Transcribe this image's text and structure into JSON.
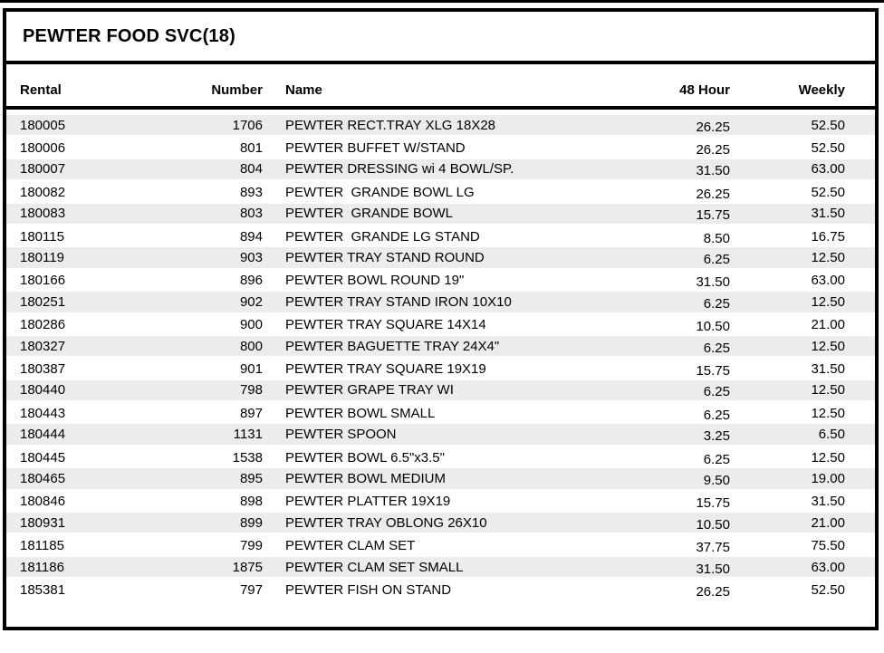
{
  "title": "PEWTER FOOD SVC(18)",
  "columns": {
    "rental": "Rental",
    "number": "Number",
    "name": "Name",
    "h48": "48 Hour",
    "weekly": "Weekly"
  },
  "colors": {
    "border": "#000000",
    "row_alt": "#ececec",
    "text": "#000000"
  },
  "rows": [
    {
      "rental": "180005",
      "number": "1706",
      "name": "PEWTER RECT.TRAY XLG 18X28",
      "h48": "26.25",
      "weekly": "52.50"
    },
    {
      "rental": "180006",
      "number": "801",
      "name": "PEWTER BUFFET W/STAND",
      "h48": "26.25",
      "weekly": "52.50"
    },
    {
      "rental": "180007",
      "number": "804",
      "name": "PEWTER DRESSING wi 4 BOWL/SP.",
      "h48": "31.50",
      "weekly": "63.00"
    },
    {
      "rental": "180082",
      "number": "893",
      "name": "PEWTER  GRANDE BOWL LG",
      "h48": "26.25",
      "weekly": "52.50"
    },
    {
      "rental": "180083",
      "number": "803",
      "name": "PEWTER  GRANDE BOWL",
      "h48": "15.75",
      "weekly": "31.50"
    },
    {
      "rental": "180115",
      "number": "894",
      "name": "PEWTER  GRANDE LG STAND",
      "h48": "8.50",
      "weekly": "16.75"
    },
    {
      "rental": "180119",
      "number": "903",
      "name": "PEWTER TRAY STAND ROUND",
      "h48": "6.25",
      "weekly": "12.50"
    },
    {
      "rental": "180166",
      "number": "896",
      "name": "PEWTER BOWL ROUND 19\"",
      "h48": "31.50",
      "weekly": "63.00"
    },
    {
      "rental": "180251",
      "number": "902",
      "name": "PEWTER TRAY STAND IRON 10X10",
      "h48": "6.25",
      "weekly": "12.50"
    },
    {
      "rental": "180286",
      "number": "900",
      "name": "PEWTER TRAY SQUARE 14X14",
      "h48": "10.50",
      "weekly": "21.00"
    },
    {
      "rental": "180327",
      "number": "800",
      "name": "PEWTER BAGUETTE TRAY 24X4\"",
      "h48": "6.25",
      "weekly": "12.50"
    },
    {
      "rental": "180387",
      "number": "901",
      "name": "PEWTER TRAY SQUARE 19X19",
      "h48": "15.75",
      "weekly": "31.50"
    },
    {
      "rental": "180440",
      "number": "798",
      "name": "PEWTER GRAPE TRAY WI",
      "h48": "6.25",
      "weekly": "12.50"
    },
    {
      "rental": "180443",
      "number": "897",
      "name": "PEWTER BOWL SMALL",
      "h48": "6.25",
      "weekly": "12.50"
    },
    {
      "rental": "180444",
      "number": "1131",
      "name": "PEWTER SPOON",
      "h48": "3.25",
      "weekly": "6.50"
    },
    {
      "rental": "180445",
      "number": "1538",
      "name": "PEWTER BOWL 6.5\"x3.5\"",
      "h48": "6.25",
      "weekly": "12.50"
    },
    {
      "rental": "180465",
      "number": "895",
      "name": "PEWTER BOWL MEDIUM",
      "h48": "9.50",
      "weekly": "19.00"
    },
    {
      "rental": "180846",
      "number": "898",
      "name": "PEWTER PLATTER 19X19",
      "h48": "15.75",
      "weekly": "31.50"
    },
    {
      "rental": "180931",
      "number": "899",
      "name": "PEWTER TRAY OBLONG 26X10",
      "h48": "10.50",
      "weekly": "21.00"
    },
    {
      "rental": "181185",
      "number": "799",
      "name": "PEWTER CLAM SET",
      "h48": "37.75",
      "weekly": "75.50"
    },
    {
      "rental": "181186",
      "number": "1875",
      "name": "PEWTER CLAM SET SMALL",
      "h48": "31.50",
      "weekly": "63.00"
    },
    {
      "rental": "185381",
      "number": "797",
      "name": "PEWTER FISH ON STAND",
      "h48": "26.25",
      "weekly": "52.50"
    }
  ]
}
